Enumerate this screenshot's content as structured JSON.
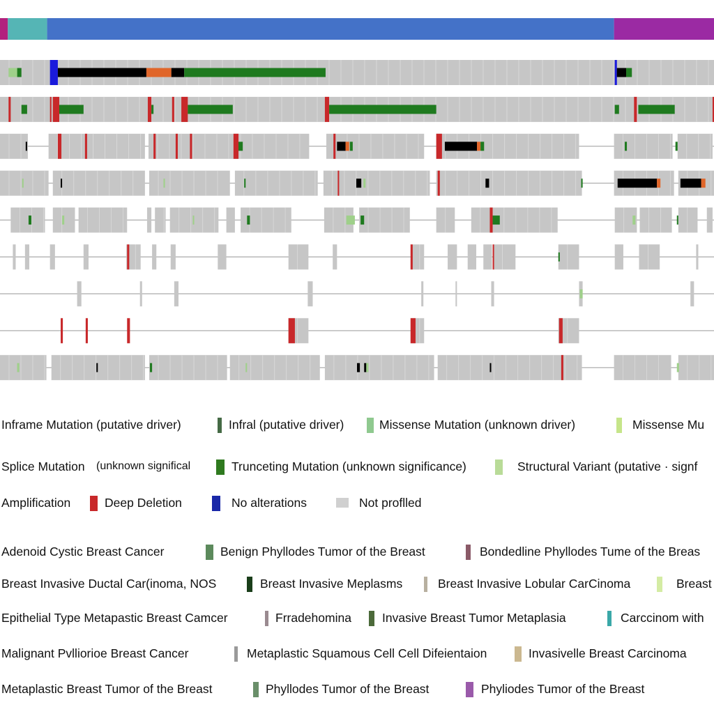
{
  "colors": {
    "track_bg": "#c6c6c6",
    "amplification": "#c8282a",
    "deep_deletion": "#1a1adc",
    "truncating": "#000000",
    "missense_driver": "#1f7a1f",
    "missense_unknown": "#9fd08a",
    "splice": "#e0662a",
    "inframe": "#8b4513",
    "no_alteration_line": "#9a9a9a",
    "not_profiled": "#d4d4d4"
  },
  "chart_data": {
    "type": "oncoprint",
    "annotation_track": {
      "segments": [
        {
          "category": "magenta",
          "color": "#b2217e",
          "from": 0.0,
          "to": 0.011
        },
        {
          "category": "teal",
          "color": "#55b5b5",
          "from": 0.011,
          "to": 0.066
        },
        {
          "category": "blue",
          "color": "#4472c8",
          "from": 0.066,
          "to": 0.86
        },
        {
          "category": "purple",
          "color": "#9b2aa3",
          "from": 0.86,
          "to": 1.0
        }
      ]
    },
    "gene_tracks": [
      {
        "blocks": [
          [
            0.0,
            1.0
          ]
        ],
        "alterations": [
          {
            "type": "missense_driver",
            "from": 0.024,
            "to": 0.03
          },
          {
            "type": "missense_unknown",
            "from": 0.012,
            "to": 0.024
          },
          {
            "type": "deep_deletion",
            "from": 0.07,
            "to": 0.081
          },
          {
            "type": "truncating",
            "from": 0.081,
            "to": 0.205
          },
          {
            "type": "splice",
            "from": 0.205,
            "to": 0.24
          },
          {
            "type": "truncating",
            "from": 0.24,
            "to": 0.258
          },
          {
            "type": "missense_driver",
            "from": 0.258,
            "to": 0.456
          },
          {
            "type": "deep_deletion",
            "from": 0.861,
            "to": 0.864
          },
          {
            "type": "truncating",
            "from": 0.864,
            "to": 0.877
          },
          {
            "type": "missense_driver",
            "from": 0.877,
            "to": 0.885
          }
        ]
      },
      {
        "blocks": [
          [
            0.0,
            1.0
          ]
        ],
        "alterations": [
          {
            "type": "amplification",
            "from": 0.012,
            "to": 0.015
          },
          {
            "type": "missense_driver",
            "from": 0.03,
            "to": 0.038
          },
          {
            "type": "amplification",
            "from": 0.07,
            "to": 0.072
          },
          {
            "type": "amplification",
            "from": 0.074,
            "to": 0.083
          },
          {
            "type": "missense_driver",
            "from": 0.083,
            "to": 0.117
          },
          {
            "type": "amplification",
            "from": 0.207,
            "to": 0.212
          },
          {
            "type": "missense_driver",
            "from": 0.212,
            "to": 0.215
          },
          {
            "type": "amplification",
            "from": 0.241,
            "to": 0.244
          },
          {
            "type": "amplification",
            "from": 0.254,
            "to": 0.263
          },
          {
            "type": "missense_driver",
            "from": 0.263,
            "to": 0.326
          },
          {
            "type": "amplification",
            "from": 0.455,
            "to": 0.461
          },
          {
            "type": "missense_driver",
            "from": 0.461,
            "to": 0.611
          },
          {
            "type": "missense_driver",
            "from": 0.861,
            "to": 0.867
          },
          {
            "type": "amplification",
            "from": 0.888,
            "to": 0.892
          },
          {
            "type": "missense_driver",
            "from": 0.894,
            "to": 0.945
          },
          {
            "type": "amplification",
            "from": 0.998,
            "to": 1.0
          }
        ]
      },
      {
        "blocks": [
          [
            0.0,
            0.039
          ],
          [
            0.068,
            0.203
          ],
          [
            0.208,
            0.433
          ],
          [
            0.457,
            0.594
          ],
          [
            0.611,
            0.811
          ],
          [
            0.86,
            0.942
          ],
          [
            0.949,
            0.998
          ]
        ],
        "alterations": [
          {
            "type": "truncating",
            "from": 0.036,
            "to": 0.038
          },
          {
            "type": "amplification",
            "from": 0.081,
            "to": 0.086
          },
          {
            "type": "amplification",
            "from": 0.119,
            "to": 0.122
          },
          {
            "type": "amplification",
            "from": 0.215,
            "to": 0.218
          },
          {
            "type": "amplification",
            "from": 0.246,
            "to": 0.249
          },
          {
            "type": "amplification",
            "from": 0.266,
            "to": 0.269
          },
          {
            "type": "amplification",
            "from": 0.327,
            "to": 0.334
          },
          {
            "type": "missense_driver",
            "from": 0.334,
            "to": 0.34
          },
          {
            "type": "amplification",
            "from": 0.467,
            "to": 0.47
          },
          {
            "type": "truncating",
            "from": 0.472,
            "to": 0.484
          },
          {
            "type": "splice",
            "from": 0.484,
            "to": 0.489
          },
          {
            "type": "missense_driver",
            "from": 0.49,
            "to": 0.494
          },
          {
            "type": "amplification",
            "from": 0.611,
            "to": 0.619
          },
          {
            "type": "truncating",
            "from": 0.623,
            "to": 0.668
          },
          {
            "type": "splice",
            "from": 0.668,
            "to": 0.673
          },
          {
            "type": "missense_driver",
            "from": 0.673,
            "to": 0.678
          },
          {
            "type": "missense_driver",
            "from": 0.875,
            "to": 0.878
          },
          {
            "type": "missense_driver",
            "from": 0.946,
            "to": 0.949
          }
        ]
      },
      {
        "blocks": [
          [
            0.0,
            0.068
          ],
          [
            0.074,
            0.203
          ],
          [
            0.209,
            0.322
          ],
          [
            0.329,
            0.445
          ],
          [
            0.453,
            0.602
          ],
          [
            0.611,
            0.815
          ],
          [
            0.86,
            0.944
          ],
          [
            0.95,
            1.0
          ]
        ],
        "alterations": [
          {
            "type": "missense_unknown",
            "from": 0.031,
            "to": 0.033
          },
          {
            "type": "truncating",
            "from": 0.085,
            "to": 0.087
          },
          {
            "type": "missense_unknown",
            "from": 0.229,
            "to": 0.231
          },
          {
            "type": "missense_driver",
            "from": 0.342,
            "to": 0.344
          },
          {
            "type": "amplification",
            "from": 0.473,
            "to": 0.475
          },
          {
            "type": "truncating",
            "from": 0.499,
            "to": 0.506
          },
          {
            "type": "missense_unknown",
            "from": 0.509,
            "to": 0.512
          },
          {
            "type": "amplification",
            "from": 0.613,
            "to": 0.616
          },
          {
            "type": "truncating",
            "from": 0.68,
            "to": 0.685
          },
          {
            "type": "missense_driver",
            "from": 0.814,
            "to": 0.816
          },
          {
            "type": "truncating",
            "from": 0.865,
            "to": 0.92
          },
          {
            "type": "splice",
            "from": 0.92,
            "to": 0.925
          },
          {
            "type": "truncating",
            "from": 0.953,
            "to": 0.982
          },
          {
            "type": "splice",
            "from": 0.982,
            "to": 0.988
          }
        ]
      },
      {
        "blocks": [
          [
            0.015,
            0.063
          ],
          [
            0.074,
            0.105
          ],
          [
            0.11,
            0.178
          ],
          [
            0.206,
            0.212
          ],
          [
            0.217,
            0.232
          ],
          [
            0.238,
            0.306
          ],
          [
            0.317,
            0.329
          ],
          [
            0.337,
            0.408
          ],
          [
            0.454,
            0.495
          ],
          [
            0.503,
            0.574
          ],
          [
            0.611,
            0.637
          ],
          [
            0.66,
            0.781
          ],
          [
            0.861,
            0.892
          ],
          [
            0.896,
            0.941
          ],
          [
            0.95,
            0.977
          ],
          [
            0.99,
            0.998
          ]
        ],
        "alterations": [
          {
            "type": "missense_driver",
            "from": 0.04,
            "to": 0.044
          },
          {
            "type": "missense_unknown",
            "from": 0.087,
            "to": 0.09
          },
          {
            "type": "missense_unknown",
            "from": 0.27,
            "to": 0.272
          },
          {
            "type": "missense_driver",
            "from": 0.346,
            "to": 0.35
          },
          {
            "type": "missense_unknown",
            "from": 0.485,
            "to": 0.497
          },
          {
            "type": "missense_driver",
            "from": 0.505,
            "to": 0.51
          },
          {
            "type": "amplification",
            "from": 0.686,
            "to": 0.69
          },
          {
            "type": "missense_driver",
            "from": 0.69,
            "to": 0.7
          },
          {
            "type": "missense_unknown",
            "from": 0.886,
            "to": 0.89
          },
          {
            "type": "missense_driver",
            "from": 0.948,
            "to": 0.95
          }
        ]
      },
      {
        "blocks": [
          [
            0.018,
            0.022
          ],
          [
            0.035,
            0.041
          ],
          [
            0.07,
            0.077
          ],
          [
            0.117,
            0.124
          ],
          [
            0.177,
            0.197
          ],
          [
            0.213,
            0.219
          ],
          [
            0.239,
            0.246
          ],
          [
            0.305,
            0.317
          ],
          [
            0.404,
            0.432
          ],
          [
            0.466,
            0.472
          ],
          [
            0.575,
            0.594
          ],
          [
            0.627,
            0.64
          ],
          [
            0.655,
            0.667
          ],
          [
            0.677,
            0.689
          ],
          [
            0.691,
            0.722
          ],
          [
            0.782,
            0.811
          ],
          [
            0.861,
            0.873
          ],
          [
            0.895,
            0.924
          ],
          [
            0.975,
            0.978
          ]
        ],
        "alterations": [
          {
            "type": "amplification",
            "from": 0.178,
            "to": 0.181
          },
          {
            "type": "amplification",
            "from": 0.575,
            "to": 0.578
          },
          {
            "type": "amplification",
            "from": 0.69,
            "to": 0.692
          },
          {
            "type": "missense_driver",
            "from": 0.782,
            "to": 0.784
          }
        ]
      },
      {
        "blocks": [
          [
            0.108,
            0.114
          ],
          [
            0.196,
            0.199
          ],
          [
            0.244,
            0.25
          ],
          [
            0.431,
            0.438
          ],
          [
            0.59,
            0.593
          ],
          [
            0.638,
            0.64
          ],
          [
            0.688,
            0.692
          ],
          [
            0.811,
            0.816
          ],
          [
            0.967,
            0.972
          ]
        ],
        "alterations": [
          {
            "type": "missense_unknown",
            "from": 0.812,
            "to": 0.816
          }
        ]
      },
      {
        "blocks": [
          [
            0.404,
            0.432
          ],
          [
            0.575,
            0.594
          ],
          [
            0.782,
            0.811
          ]
        ],
        "alterations": [
          {
            "type": "amplification",
            "from": 0.404,
            "to": 0.413
          },
          {
            "type": "amplification",
            "from": 0.575,
            "to": 0.582
          },
          {
            "type": "amplification",
            "from": 0.783,
            "to": 0.788
          },
          {
            "type": "amplification",
            "from": 0.085,
            "to": 0.088
          },
          {
            "type": "amplification",
            "from": 0.12,
            "to": 0.123
          },
          {
            "type": "amplification",
            "from": 0.178,
            "to": 0.182
          }
        ]
      },
      {
        "blocks": [
          [
            0.0,
            0.065
          ],
          [
            0.072,
            0.203
          ],
          [
            0.209,
            0.318
          ],
          [
            0.322,
            0.448
          ],
          [
            0.455,
            0.608
          ],
          [
            0.613,
            0.815
          ],
          [
            0.86,
            0.94
          ],
          [
            0.95,
            1.0
          ]
        ],
        "alterations": [
          {
            "type": "missense_unknown",
            "from": 0.024,
            "to": 0.027
          },
          {
            "type": "truncating",
            "from": 0.135,
            "to": 0.137
          },
          {
            "type": "missense_driver",
            "from": 0.21,
            "to": 0.213
          },
          {
            "type": "missense_unknown",
            "from": 0.344,
            "to": 0.346
          },
          {
            "type": "truncating",
            "from": 0.5,
            "to": 0.504
          },
          {
            "type": "truncating",
            "from": 0.51,
            "to": 0.513
          },
          {
            "type": "missense_unknown",
            "from": 0.513,
            "to": 0.516
          },
          {
            "type": "truncating",
            "from": 0.686,
            "to": 0.688
          },
          {
            "type": "amplification",
            "from": 0.786,
            "to": 0.789
          },
          {
            "type": "missense_unknown",
            "from": 0.948,
            "to": 0.951
          }
        ]
      }
    ]
  },
  "legend": {
    "alterations": [
      [
        {
          "label": "Inframe Mutation (putative driver)",
          "swatch": null
        },
        {
          "label": "Infral (putative driver)",
          "swatch": "#456a45"
        },
        {
          "label": "Missense Mutation (unknown driver)",
          "swatch": "#8fc98f"
        },
        {
          "label": "Missense Mu",
          "swatch": "#c6e58a"
        }
      ],
      [
        {
          "label": "Splice Mutation",
          "swatch": null
        },
        {
          "label": "(unknown significal",
          "swatch": null
        },
        {
          "label": "Trunceting Mutation (unknown significance)",
          "swatch": "#2f7a1f"
        },
        {
          "label": "Structural Variant (putative · signf",
          "swatch": "#b9db98"
        }
      ],
      [
        {
          "label": "Amplification",
          "swatch": null
        },
        {
          "label": "Deep Deletion",
          "swatch": "#c8282a"
        },
        {
          "label": "No alterations",
          "swatch": "#1a28a8"
        },
        {
          "label": "Not proflled",
          "swatch": "#d0d0d0"
        }
      ]
    ],
    "cancer_types": [
      [
        {
          "label": "Adenoid Cystic Breast Cancer",
          "swatch": null
        },
        {
          "label": "Benign Phyllodes Tumor of the Breast",
          "swatch": "#5c8a5c"
        },
        {
          "label": "Bondedline Phyllodes Tume of the Breas",
          "swatch": "#8a5a68"
        }
      ],
      [
        {
          "label": "Breast Invasive Ductal Car(inoma, NOS",
          "swatch": null
        },
        {
          "label": "Breast Invasive Meplasms",
          "swatch": "#1a3e1a"
        },
        {
          "label": "Breast Invasive Lobular CarCinoma",
          "swatch": "#b8b0a0"
        },
        {
          "label": "Breast",
          "swatch": "#d4eca4"
        }
      ],
      [
        {
          "label": "Epithelial Type Metapastic Breast Camcer",
          "swatch": null
        },
        {
          "label": "Frradehomina",
          "swatch": "#9a8a90"
        },
        {
          "label": "Invasive Breast Tumor Metaplasia",
          "swatch": "#4c6a3a"
        },
        {
          "label": "Carccinom with",
          "swatch": "#3aa8a8"
        }
      ],
      [
        {
          "label": "Malignant Pvlliorioe Breast Cancer",
          "swatch": null
        },
        {
          "label": "Metaplastic Squamous Cell Cell Difeientaion",
          "swatch": "#9a9a9a"
        },
        {
          "label": "Invasivelle Breast Carcinoma",
          "swatch": "#cbb890"
        }
      ],
      [
        {
          "label": "Metaplastic Breast Tumor of the Breast",
          "swatch": null
        },
        {
          "label": "Phyllodes Tumor of the Breast",
          "swatch": "#6a8f6a"
        },
        {
          "label": "Phyliodes Tumor of the Breast",
          "swatch": "#9a5aaa"
        }
      ]
    ]
  }
}
